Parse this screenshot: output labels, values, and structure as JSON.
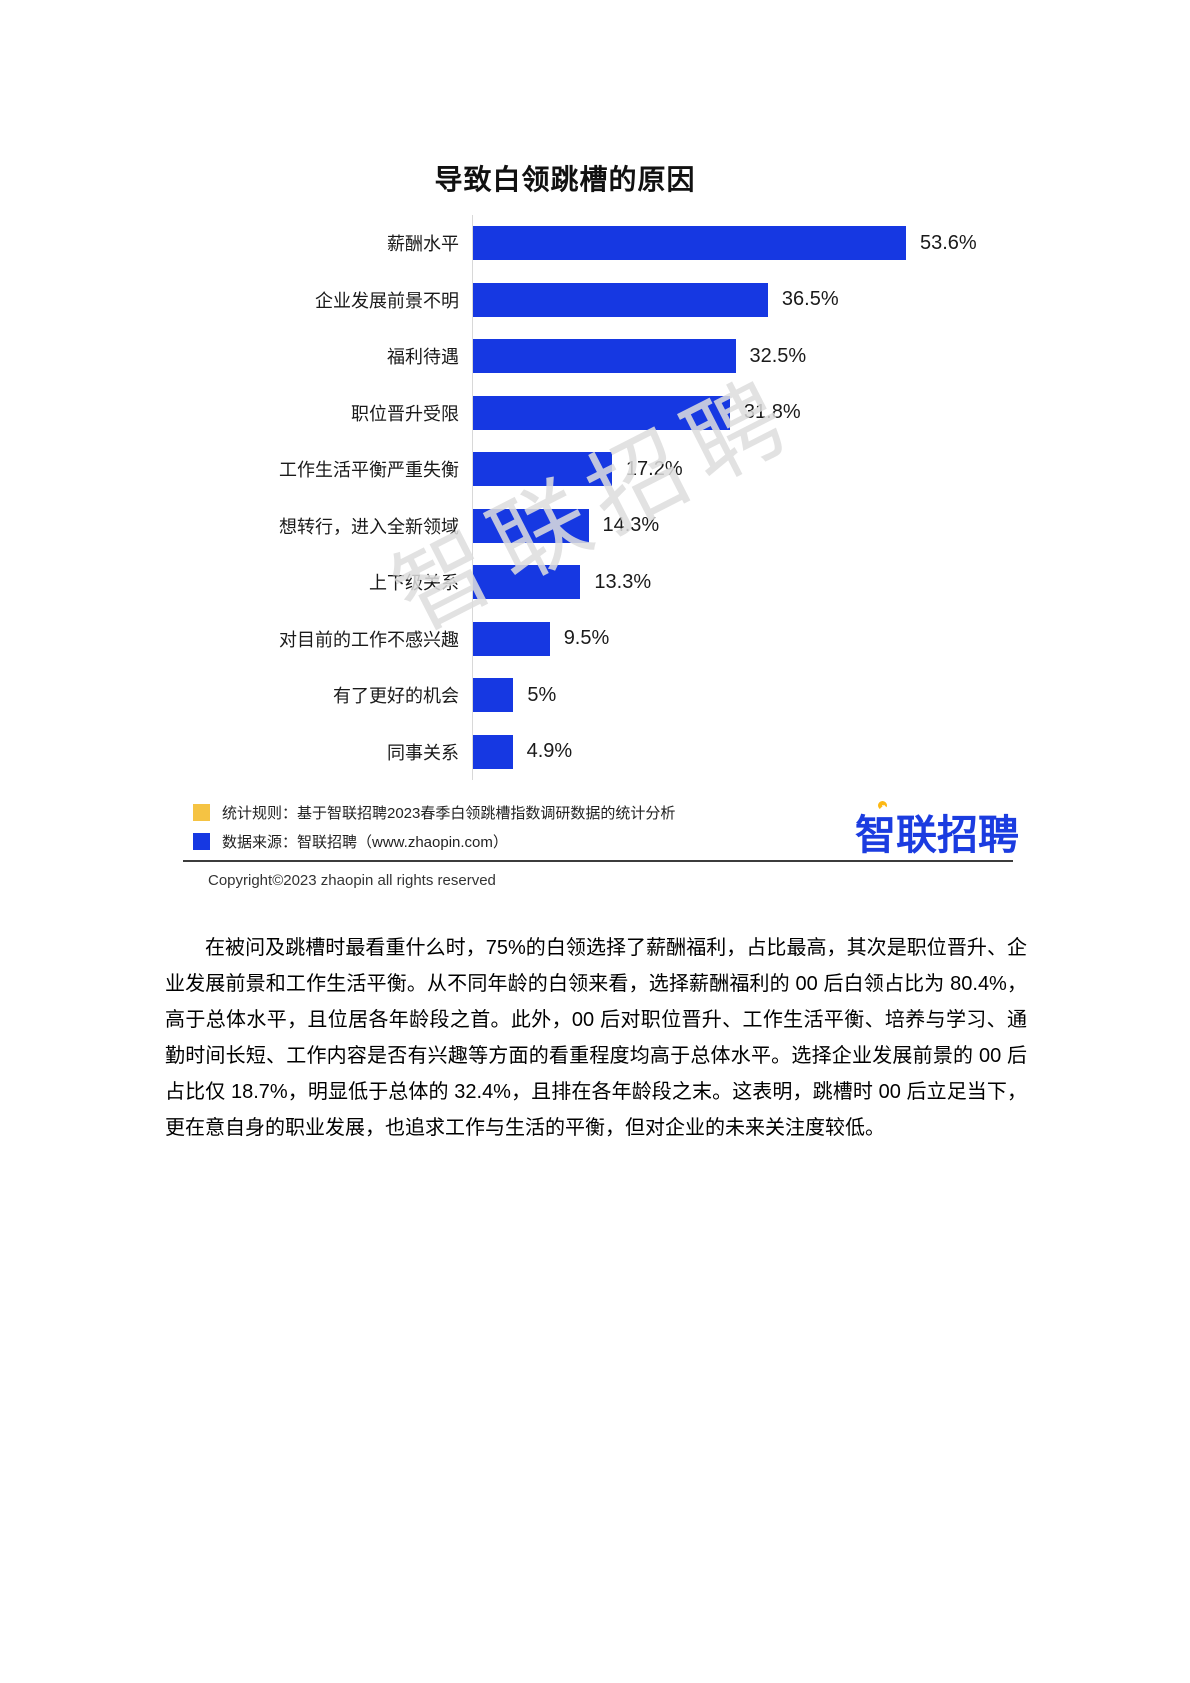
{
  "page": {
    "watermark": "智联招聘",
    "watermark_color": "#dedede",
    "copyright": "Copyright©2023 zhaopin all rights reserved"
  },
  "chart_data": {
    "type": "bar",
    "orientation": "horizontal",
    "title": "导致白领跳槽的原因",
    "categories": [
      "薪酬水平",
      "企业发展前景不明",
      "福利待遇",
      "职位晋升受限",
      "工作生活平衡严重失衡",
      "想转行，进入全新领域",
      "上下级关系",
      "对目前的工作不感兴趣",
      "有了更好的机会",
      "同事关系"
    ],
    "values": [
      53.6,
      36.5,
      32.5,
      31.8,
      17.2,
      14.3,
      13.3,
      9.5,
      5,
      4.9
    ],
    "value_labels": [
      "53.6%",
      "36.5%",
      "32.5%",
      "31.8%",
      "17.2%",
      "14.3%",
      "13.3%",
      "9.5%",
      "5%",
      "4.9%"
    ],
    "xlabel": "",
    "ylabel": "",
    "xlim": [
      0,
      53.6
    ],
    "grid": false,
    "bar_color": "#1638e2",
    "legend_position": "bottom-left"
  },
  "legend": {
    "items": [
      {
        "color": "#f5c343",
        "text": "统计规则：基于智联招聘2023春季白领跳槽指数调研数据的统计分析"
      },
      {
        "color": "#1638e2",
        "text": "数据来源：智联招聘（www.zhaopin.com）"
      }
    ]
  },
  "logo": {
    "text": "智联招聘",
    "color": "#1b3ce0",
    "pin_color": "#fdb813"
  },
  "paragraph": "在被问及跳槽时最看重什么时，75%的白领选择了薪酬福利，占比最高，其次是职位晋升、企业发展前景和工作生活平衡。从不同年龄的白领来看，选择薪酬福利的 00 后白领占比为 80.4%，高于总体水平，且位居各年龄段之首。此外，00 后对职位晋升、工作生活平衡、培养与学习、通勤时间长短、工作内容是否有兴趣等方面的看重程度均高于总体水平。选择企业发展前景的 00 后占比仅 18.7%，明显低于总体的 32.4%，且排在各年龄段之末。这表明，跳槽时 00 后立足当下，更在意自身的职业发展，也追求工作与生活的平衡，但对企业的未来关注度较低。"
}
